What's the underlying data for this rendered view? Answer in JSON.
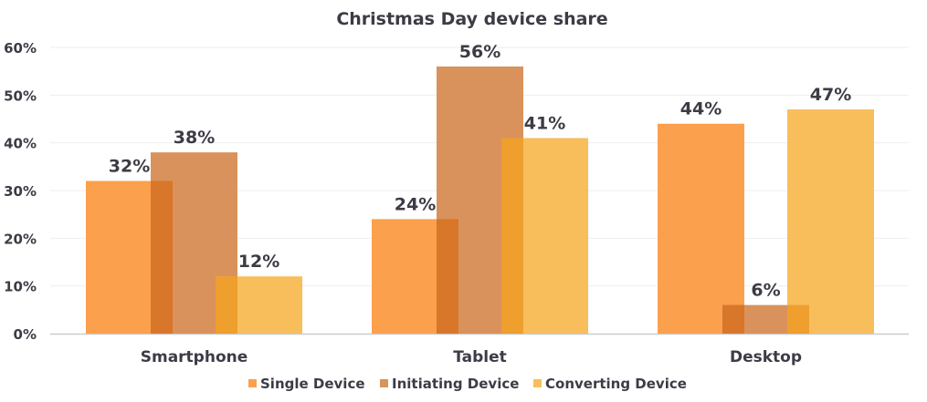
{
  "chart_data": {
    "type": "bar",
    "title": "Christmas Day device share",
    "xlabel": "",
    "ylabel": "",
    "ylim": [
      0,
      60
    ],
    "yticks": [
      "0%",
      "10%",
      "20%",
      "30%",
      "40%",
      "50%",
      "60%"
    ],
    "grid": true,
    "legend_position": "bottom",
    "categories": [
      "Smartphone",
      "Tablet",
      "Desktop"
    ],
    "series": [
      {
        "name": "Single Device",
        "values": [
          32,
          24,
          44
        ],
        "labels": [
          "32%",
          "24%",
          "44%"
        ],
        "color": "#FBA04C"
      },
      {
        "name": "Initiating Device",
        "values": [
          38,
          56,
          6
        ],
        "labels": [
          "38%",
          "56%",
          "6%"
        ],
        "color": "#D9925C"
      },
      {
        "name": "Converting Device",
        "values": [
          12,
          41,
          47
        ],
        "labels": [
          "12%",
          "41%",
          "47%"
        ],
        "color": "#F8BE5C"
      }
    ],
    "overlap_colors": {
      "single_initiating": "#D8762A",
      "initiating_converting": "#EE9F2E"
    }
  }
}
